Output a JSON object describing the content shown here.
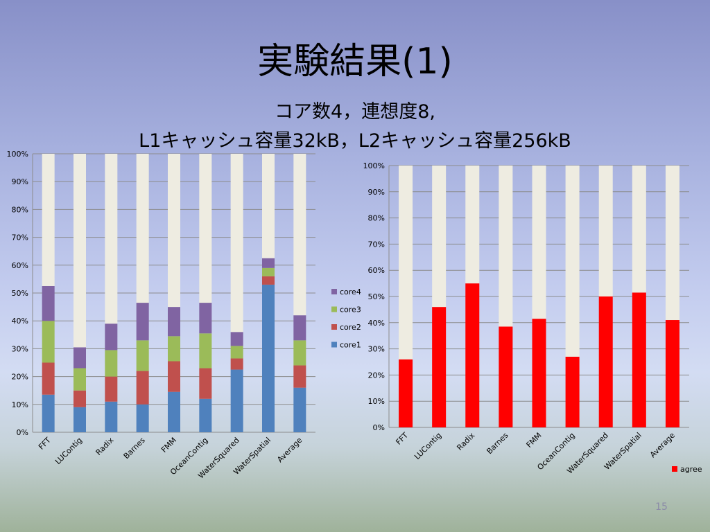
{
  "slide": {
    "title": "実験結果(1)",
    "subtitle_line1": "コア数4，連想度8,",
    "subtitle_line2": "L1キャッシュ容量32kB，L2キャッシュ容量256kB",
    "page_number": "15"
  },
  "chart_data": [
    {
      "type": "bar",
      "stacked": true,
      "percent_stacked": true,
      "categories": [
        "FFT",
        "LUContig",
        "Radix",
        "Barnes",
        "FMM",
        "OceanContig",
        "WaterSquared",
        "WaterSpatial",
        "Average"
      ],
      "series": [
        {
          "name": "core1",
          "color": "#4f81bd",
          "values": [
            13.5,
            9,
            11,
            10,
            14.5,
            12,
            22.5,
            53,
            16
          ]
        },
        {
          "name": "core2",
          "color": "#c0504d",
          "values": [
            11.5,
            6,
            9,
            12,
            11,
            11,
            4,
            3,
            8
          ]
        },
        {
          "name": "core3",
          "color": "#9bbb59",
          "values": [
            15,
            8,
            9.5,
            11,
            9,
            12.5,
            4.5,
            3,
            9
          ]
        },
        {
          "name": "core4",
          "color": "#8064a2",
          "values": [
            12.5,
            7.5,
            9.5,
            13.5,
            10.5,
            11,
            5,
            3.5,
            9
          ]
        },
        {
          "name": "",
          "color": "#eeece1",
          "values": [
            47.5,
            69.5,
            61,
            53.5,
            55,
            53.5,
            64,
            37.5,
            58
          ]
        }
      ],
      "yticks": [
        "0%",
        "10%",
        "20%",
        "30%",
        "40%",
        "50%",
        "60%",
        "70%",
        "80%",
        "90%",
        "100%"
      ],
      "ylim": [
        0,
        100
      ],
      "grid": true,
      "legend": "right"
    },
    {
      "type": "bar",
      "stacked": true,
      "percent_stacked": true,
      "categories": [
        "FFT",
        "LUContig",
        "Radix",
        "Barnes",
        "FMM",
        "OceanContig",
        "WaterSquared",
        "WaterSpatial",
        "Average"
      ],
      "series": [
        {
          "name": "agree",
          "color": "#ff0000",
          "values": [
            26,
            46,
            55,
            38.5,
            41.5,
            27,
            50,
            51.5,
            41
          ]
        },
        {
          "name": "",
          "color": "#eeece1",
          "values": [
            74,
            54,
            45,
            61.5,
            58.5,
            73,
            50,
            48.5,
            59
          ]
        }
      ],
      "yticks": [
        "0%",
        "10%",
        "20%",
        "30%",
        "40%",
        "50%",
        "60%",
        "70%",
        "80%",
        "90%",
        "100%"
      ],
      "ylim": [
        0,
        100
      ],
      "grid": true,
      "legend": "bottom-right"
    }
  ]
}
